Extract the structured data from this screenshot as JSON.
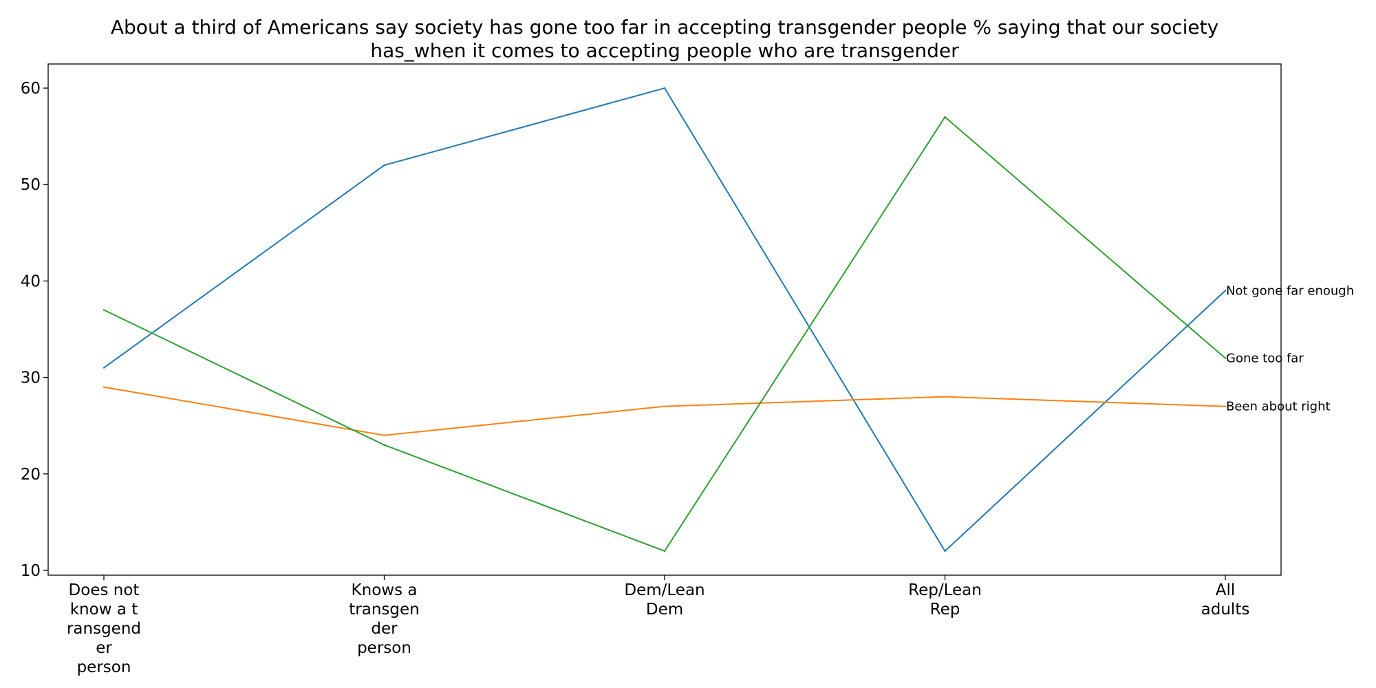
{
  "chart_data": {
    "type": "line",
    "title": "About a third of Americans say society has gone too far in accepting transgender people % saying that our society has_when it comes to accepting people who are transgender",
    "title_lines": [
      "About a third of Americans say society has gone too far in accepting transgender people % saying that our society",
      "has_when it comes to accepting people who are transgender"
    ],
    "categories": [
      "Does not know a transgender person",
      "Knows a transgender person",
      "Dem/Lean Dem",
      "Rep/Lean Rep",
      "All adults"
    ],
    "category_label_lines": [
      [
        "Does not",
        "know a t",
        "ransgend",
        "er",
        "person"
      ],
      [
        "Knows a",
        "transgen",
        "der",
        "person"
      ],
      [
        "Dem/Lean",
        "Dem"
      ],
      [
        "Rep/Lean",
        "Rep"
      ],
      [
        "All",
        "adults"
      ]
    ],
    "series": [
      {
        "name": "Not gone far enough",
        "color": "#1f77b4",
        "values": [
          31,
          52,
          60,
          12,
          39
        ]
      },
      {
        "name": "Been about right",
        "color": "#ff7f0e",
        "values": [
          29,
          24,
          27,
          28,
          27
        ]
      },
      {
        "name": "Gone too far",
        "color": "#2ca02c",
        "values": [
          37,
          23,
          12,
          57,
          32
        ]
      }
    ],
    "ylim": [
      9.5,
      62.5
    ],
    "yticks": [
      10,
      20,
      30,
      40,
      50,
      60
    ],
    "xlabel": "",
    "ylabel": "",
    "grid": false,
    "legend": "none; series labels placed at line ends"
  }
}
